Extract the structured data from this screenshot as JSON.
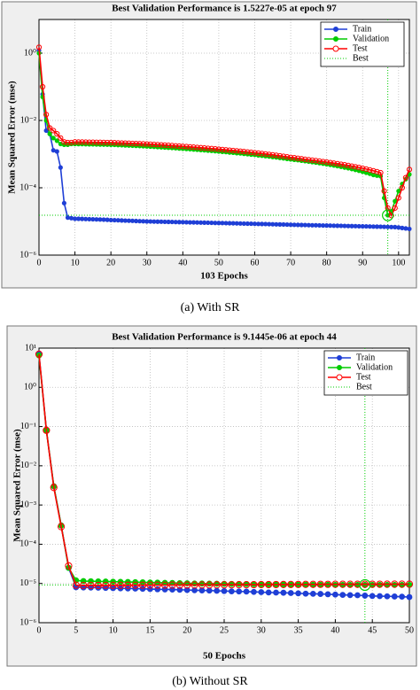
{
  "chart_data": [
    {
      "type": "line",
      "title": "Best Validation Performance is 1.5227e-05 at epoch 97",
      "xlabel": "103 Epochs",
      "ylabel": "Mean Squared Error  (mse)",
      "caption": "(a) With SR",
      "yscale": "log",
      "grid": true,
      "legend": "upper right",
      "xlim": [
        0,
        103
      ],
      "xticks": [
        0,
        10,
        20,
        30,
        40,
        50,
        60,
        70,
        80,
        90,
        100
      ],
      "ylim": [
        1e-06,
        10
      ],
      "yticks": [
        {
          "value": 1e-06,
          "label": "10⁻⁶"
        },
        {
          "value": 0.0001,
          "label": "10⁻⁴"
        },
        {
          "value": 0.01,
          "label": "10⁻²"
        },
        {
          "value": 1,
          "label": "10⁰"
        }
      ],
      "x": [
        0,
        1,
        2,
        3,
        4,
        5,
        6,
        7,
        8,
        9,
        10,
        11,
        12,
        13,
        14,
        15,
        16,
        17,
        18,
        19,
        20,
        21,
        22,
        23,
        24,
        25,
        26,
        27,
        28,
        29,
        30,
        31,
        32,
        33,
        34,
        35,
        36,
        37,
        38,
        39,
        40,
        41,
        42,
        43,
        44,
        45,
        46,
        47,
        48,
        49,
        50,
        51,
        52,
        53,
        54,
        55,
        56,
        57,
        58,
        59,
        60,
        61,
        62,
        63,
        64,
        65,
        66,
        67,
        68,
        69,
        70,
        71,
        72,
        73,
        74,
        75,
        76,
        77,
        78,
        79,
        80,
        81,
        82,
        83,
        84,
        85,
        86,
        87,
        88,
        89,
        90,
        91,
        92,
        93,
        94,
        95,
        96,
        97,
        98,
        99,
        100,
        101,
        102,
        103
      ],
      "series": [
        {
          "name": "Train",
          "color": "#1f3fd6",
          "values": [
            1.2,
            0.06,
            0.005,
            0.004,
            0.0013,
            0.0012,
            0.0004,
            3.5e-05,
            1.3e-05,
            1.25e-05,
            1.2e-05,
            1.2e-05,
            1.19e-05,
            1.18e-05,
            1.17e-05,
            1.16e-05,
            1.15e-05,
            1.14e-05,
            1.13e-05,
            1.12e-05,
            1.1e-05,
            1.09e-05,
            1.08e-05,
            1.07e-05,
            1.06e-05,
            1.05e-05,
            1.04e-05,
            1.03e-05,
            1.02e-05,
            1.01e-05,
            1e-05,
            9.95e-06,
            9.9e-06,
            9.85e-06,
            9.8e-06,
            9.75e-06,
            9.7e-06,
            9.65e-06,
            9.6e-06,
            9.55e-06,
            9.5e-06,
            9.45e-06,
            9.4e-06,
            9.35e-06,
            9.3e-06,
            9.25e-06,
            9.2e-06,
            9.15e-06,
            9.1e-06,
            9.05e-06,
            9e-06,
            8.95e-06,
            8.9e-06,
            8.85e-06,
            8.8e-06,
            8.75e-06,
            8.7e-06,
            8.65e-06,
            8.6e-06,
            8.55e-06,
            8.5e-06,
            8.45e-06,
            8.4e-06,
            8.35e-06,
            8.3e-06,
            8.25e-06,
            8.2e-06,
            8.15e-06,
            8.1e-06,
            8.05e-06,
            8e-06,
            7.95e-06,
            7.9e-06,
            7.85e-06,
            7.8e-06,
            7.76e-06,
            7.72e-06,
            7.68e-06,
            7.64e-06,
            7.6e-06,
            7.56e-06,
            7.52e-06,
            7.48e-06,
            7.44e-06,
            7.4e-06,
            7.36e-06,
            7.32e-06,
            7.28e-06,
            7.24e-06,
            7.2e-06,
            7.16e-06,
            7.12e-06,
            7.08e-06,
            7.04e-06,
            7e-06,
            6.96e-06,
            6.92e-06,
            6.88e-06,
            6.84e-06,
            6.8e-06,
            6.6e-06,
            6.4e-06,
            6.2e-06,
            6e-06
          ]
        },
        {
          "name": "Validation",
          "color": "#00cc00",
          "values": [
            1.0,
            0.05,
            0.01,
            0.004,
            0.003,
            0.0025,
            0.002,
            0.0019,
            0.0019,
            0.002,
            0.002,
            0.00199,
            0.00198,
            0.00197,
            0.00196,
            0.00195,
            0.00194,
            0.00193,
            0.00192,
            0.00191,
            0.0019,
            0.00188,
            0.00186,
            0.00184,
            0.00182,
            0.0018,
            0.00178,
            0.00176,
            0.00174,
            0.00172,
            0.0017,
            0.00167,
            0.00165,
            0.00162,
            0.0016,
            0.00157,
            0.00155,
            0.00152,
            0.0015,
            0.00147,
            0.00145,
            0.00142,
            0.0014,
            0.00137,
            0.00135,
            0.00132,
            0.0013,
            0.00127,
            0.00125,
            0.00122,
            0.0012,
            0.00117,
            0.00115,
            0.00112,
            0.0011,
            0.00107,
            0.00105,
            0.00102,
            0.001,
            0.00097,
            0.00095,
            0.00092,
            0.0009,
            0.00087,
            0.00085,
            0.00082,
            0.0008,
            0.00077,
            0.00075,
            0.00072,
            0.0007,
            0.00068,
            0.00066,
            0.00064,
            0.00062,
            0.0006,
            0.00058,
            0.00056,
            0.00054,
            0.00052,
            0.0005,
            0.00048,
            0.00046,
            0.00044,
            0.00042,
            0.0004,
            0.00038,
            0.00036,
            0.00034,
            0.00032,
            0.0003,
            0.00028,
            0.00026,
            0.00024,
            0.00023,
            0.00022,
            5e-05,
            1.5227e-05,
            2e-05,
            4e-05,
            8e-05,
            0.00013,
            0.00018,
            0.00025
          ]
        },
        {
          "name": "Test",
          "color": "#ff0000",
          "values": [
            1.5,
            0.1,
            0.015,
            0.006,
            0.005,
            0.004,
            0.003,
            0.0023,
            0.0022,
            0.0022,
            0.0023,
            0.00229,
            0.00228,
            0.00227,
            0.00226,
            0.00225,
            0.00224,
            0.00223,
            0.00222,
            0.00221,
            0.0022,
            0.00218,
            0.00216,
            0.00214,
            0.00212,
            0.0021,
            0.00208,
            0.00206,
            0.00204,
            0.00202,
            0.002,
            0.00197,
            0.00194,
            0.00191,
            0.00188,
            0.00185,
            0.00182,
            0.00179,
            0.00176,
            0.00173,
            0.0017,
            0.00167,
            0.00164,
            0.00161,
            0.00158,
            0.00155,
            0.00152,
            0.00149,
            0.00146,
            0.00143,
            0.0014,
            0.00137,
            0.00134,
            0.00131,
            0.00128,
            0.00125,
            0.00122,
            0.00119,
            0.00116,
            0.00113,
            0.0011,
            0.00107,
            0.00104,
            0.00101,
            0.00098,
            0.00095,
            0.00092,
            0.00089,
            0.00086,
            0.00083,
            0.0008,
            0.00078,
            0.00075,
            0.00073,
            0.0007,
            0.00068,
            0.00066,
            0.00064,
            0.00062,
            0.0006,
            0.00058,
            0.00056,
            0.00054,
            0.00052,
            0.0005,
            0.00048,
            0.00046,
            0.00044,
            0.00042,
            0.0004,
            0.00038,
            0.00036,
            0.00034,
            0.00032,
            0.0003,
            0.00028,
            8e-05,
            2.5e-05,
            1.5e-05,
            2.5e-05,
            5e-05,
            0.0001,
            0.0002,
            0.00035
          ]
        }
      ],
      "best": {
        "name": "Best",
        "x": 97,
        "y": 1.5227e-05,
        "color": "#00cc00"
      }
    },
    {
      "type": "line",
      "title": "Best Validation Performance is 9.1445e-06 at epoch 44",
      "xlabel": "50 Epochs",
      "ylabel": "Mean Squared Error  (mse)",
      "caption": "(b) Without SR",
      "yscale": "log",
      "grid": true,
      "legend": "upper right",
      "xlim": [
        0,
        50
      ],
      "xticks": [
        0,
        5,
        10,
        15,
        20,
        25,
        30,
        35,
        40,
        45,
        50
      ],
      "ylim": [
        1e-06,
        10
      ],
      "yticks": [
        {
          "value": 1e-06,
          "label": "10⁻⁶"
        },
        {
          "value": 1e-05,
          "label": "10⁻⁵"
        },
        {
          "value": 0.0001,
          "label": "10⁻⁴"
        },
        {
          "value": 0.001,
          "label": "10⁻³"
        },
        {
          "value": 0.01,
          "label": "10⁻²"
        },
        {
          "value": 0.1,
          "label": "10⁻¹"
        },
        {
          "value": 1,
          "label": "10⁰"
        },
        {
          "value": 10,
          "label": "10¹"
        }
      ],
      "x": [
        0,
        1,
        2,
        3,
        4,
        5,
        6,
        7,
        8,
        9,
        10,
        11,
        12,
        13,
        14,
        15,
        16,
        17,
        18,
        19,
        20,
        21,
        22,
        23,
        24,
        25,
        26,
        27,
        28,
        29,
        30,
        31,
        32,
        33,
        34,
        35,
        36,
        37,
        38,
        39,
        40,
        41,
        42,
        43,
        44,
        45,
        46,
        47,
        48,
        49,
        50
      ],
      "series": [
        {
          "name": "Train",
          "color": "#1f3fd6",
          "values": [
            7,
            0.08,
            0.003,
            0.0003,
            2.5e-05,
            8e-06,
            7.9e-06,
            7.85e-06,
            7.8e-06,
            7.7e-06,
            7.6e-06,
            7.5e-06,
            7.45e-06,
            7.4e-06,
            7.3e-06,
            7.2e-06,
            7.1e-06,
            7.05e-06,
            7e-06,
            6.9e-06,
            6.8e-06,
            6.7e-06,
            6.65e-06,
            6.6e-06,
            6.5e-06,
            6.4e-06,
            6.3e-06,
            6.25e-06,
            6.2e-06,
            6.1e-06,
            6e-06,
            5.9e-06,
            5.85e-06,
            5.8e-06,
            5.7e-06,
            5.6e-06,
            5.5e-06,
            5.45e-06,
            5.4e-06,
            5.3e-06,
            5.2e-06,
            5.1e-06,
            5.05e-06,
            5e-06,
            4.9e-06,
            4.8e-06,
            4.75e-06,
            4.7e-06,
            4.65e-06,
            4.6e-06,
            4.5e-06
          ]
        },
        {
          "name": "Validation",
          "color": "#00cc00",
          "values": [
            6.5,
            0.08,
            0.003,
            0.0003,
            2.5e-05,
            1.2e-05,
            1.15e-05,
            1.14e-05,
            1.13e-05,
            1.12e-05,
            1.11e-05,
            1.1e-05,
            1.09e-05,
            1.08e-05,
            1.07e-05,
            1.06e-05,
            1.05e-05,
            1.04e-05,
            1.03e-05,
            1.02e-05,
            1.01e-05,
            1e-05,
            9.95e-06,
            9.9e-06,
            9.85e-06,
            9.8e-06,
            9.75e-06,
            9.7e-06,
            9.65e-06,
            9.6e-06,
            9.55e-06,
            9.5e-06,
            9.45e-06,
            9.4e-06,
            9.35e-06,
            9.3e-06,
            9.28e-06,
            9.26e-06,
            9.24e-06,
            9.22e-06,
            9.2e-06,
            9.18e-06,
            9.17e-06,
            9.16e-06,
            9.1445e-06,
            9.15e-06,
            9.16e-06,
            9.17e-06,
            9.18e-06,
            9.19e-06,
            9.2e-06
          ]
        },
        {
          "name": "Test",
          "color": "#ff0000",
          "values": [
            7,
            0.08,
            0.0028,
            0.00028,
            2.8e-05,
            9e-06,
            8.9e-06,
            8.9e-06,
            8.9e-06,
            8.92e-06,
            8.94e-06,
            8.96e-06,
            8.98e-06,
            9e-06,
            9.02e-06,
            9.04e-06,
            9.06e-06,
            9.08e-06,
            9.1e-06,
            9.12e-06,
            9.14e-06,
            9.16e-06,
            9.18e-06,
            9.2e-06,
            9.22e-06,
            9.24e-06,
            9.26e-06,
            9.28e-06,
            9.3e-06,
            9.32e-06,
            9.34e-06,
            9.36e-06,
            9.38e-06,
            9.4e-06,
            9.42e-06,
            9.44e-06,
            9.46e-06,
            9.48e-06,
            9.5e-06,
            9.51e-06,
            9.52e-06,
            9.53e-06,
            9.54e-06,
            9.55e-06,
            9.56e-06,
            9.57e-06,
            9.58e-06,
            9.59e-06,
            9.6e-06,
            9.6e-06,
            9.6e-06
          ]
        }
      ],
      "best": {
        "name": "Best",
        "x": 44,
        "y": 9.1445e-06,
        "color": "#00cc00"
      }
    }
  ]
}
